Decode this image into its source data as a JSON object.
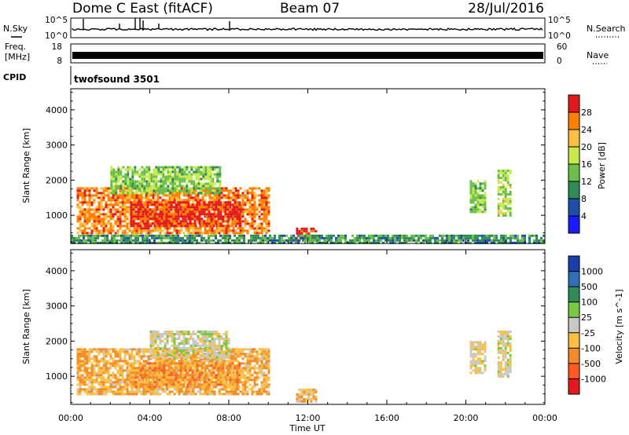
{
  "header": {
    "station": "Dome C East (fitACF)",
    "beam": "Beam 07",
    "date": "28/Jul/2016"
  },
  "noise_panel": {
    "left_label": "N.Sky",
    "left_ticks": [
      "10^5",
      "10^0"
    ],
    "right_label": "N.Search",
    "right_ticks": [
      "10^5",
      "10^0"
    ]
  },
  "freq_panel": {
    "left_label_line1": "Freq.",
    "left_label_line2": "[MHz]",
    "left_ticks": [
      "18",
      "8"
    ],
    "right_label": "Nave",
    "right_ticks": [
      "60",
      "0"
    ]
  },
  "cpid": {
    "label": "CPID",
    "value": "twofsound 3501"
  },
  "power_panel": {
    "ylabel": "Slant Range [km]",
    "colorbar_label": "Power [dB]",
    "colorbar_ticks": [
      "28",
      "24",
      "20",
      "16",
      "12",
      "8",
      "4"
    ],
    "colorbar_colors": [
      "#e31a1c",
      "#ff7f00",
      "#fdbf3f",
      "#c7e94a",
      "#6abf4b",
      "#2e8b57",
      "#1f4fa8",
      "#1a1aff"
    ]
  },
  "velocity_panel": {
    "ylabel": "Slant Range [km]",
    "colorbar_label": "Velocity [m s^-1]",
    "colorbar_ticks": [
      "1000",
      "500",
      "100",
      "25",
      "-25",
      "-100",
      "-500",
      "-1000"
    ],
    "colorbar_colors": [
      "#1a3fa8",
      "#2f6fb8",
      "#2e8b57",
      "#7ac943",
      "#c8c8c8",
      "#fdbf3f",
      "#f28c28",
      "#ff5a1f",
      "#e31a1c"
    ]
  },
  "x_axis": {
    "label": "Time UT",
    "ticks": [
      "00:00",
      "04:00",
      "08:00",
      "12:00",
      "16:00",
      "20:00",
      "00:00"
    ]
  },
  "chart_data": [
    {
      "type": "heatmap",
      "title": "Power",
      "xlabel": "Time UT",
      "ylabel": "Slant Range [km]",
      "x_range_hours": [
        0,
        24
      ],
      "ylim": [
        200,
        4600
      ],
      "yticks": [
        1000,
        2000,
        3000,
        4000
      ],
      "color_label": "Power [dB]",
      "color_range": [
        0,
        30
      ],
      "regions": [
        {
          "t0": 0.3,
          "t1": 10.0,
          "r0": 500,
          "r1": 1800,
          "value": 24
        },
        {
          "t0": 3.0,
          "t1": 8.5,
          "r0": 700,
          "r1": 1400,
          "value": 28
        },
        {
          "t0": 2.0,
          "t1": 7.5,
          "r0": 1600,
          "r1": 2400,
          "value": 14
        },
        {
          "t0": 11.4,
          "t1": 12.4,
          "r0": 250,
          "r1": 650,
          "value": 28
        },
        {
          "t0": 20.2,
          "t1": 21.0,
          "r0": 1100,
          "r1": 2000,
          "value": 14
        },
        {
          "t0": 21.6,
          "t1": 22.2,
          "r0": 1000,
          "r1": 2300,
          "value": 16
        },
        {
          "t0": 0,
          "t1": 24,
          "r0": 200,
          "r1": 450,
          "value": 10
        }
      ]
    },
    {
      "type": "heatmap",
      "title": "Velocity",
      "xlabel": "Time UT",
      "ylabel": "Slant Range [km]",
      "x_range_hours": [
        0,
        24
      ],
      "ylim": [
        200,
        4600
      ],
      "yticks": [
        1000,
        2000,
        3000,
        4000
      ],
      "color_label": "Velocity [m s^-1]",
      "color_range": [
        -1000,
        1000
      ],
      "regions": [
        {
          "t0": 0.3,
          "t1": 10.0,
          "r0": 500,
          "r1": 1800,
          "value": -300
        },
        {
          "t0": 3.0,
          "t1": 8.5,
          "r0": 700,
          "r1": 1400,
          "value": -400
        },
        {
          "t0": 4.0,
          "t1": 8.0,
          "r0": 1500,
          "r1": 2300,
          "value": 0
        },
        {
          "t0": 11.4,
          "t1": 12.4,
          "r0": 250,
          "r1": 650,
          "value": -200
        },
        {
          "t0": 20.2,
          "t1": 21.0,
          "r0": 1100,
          "r1": 2000,
          "value": -80
        },
        {
          "t0": 21.6,
          "t1": 22.2,
          "r0": 1000,
          "r1": 2300,
          "value": -60
        }
      ]
    }
  ]
}
